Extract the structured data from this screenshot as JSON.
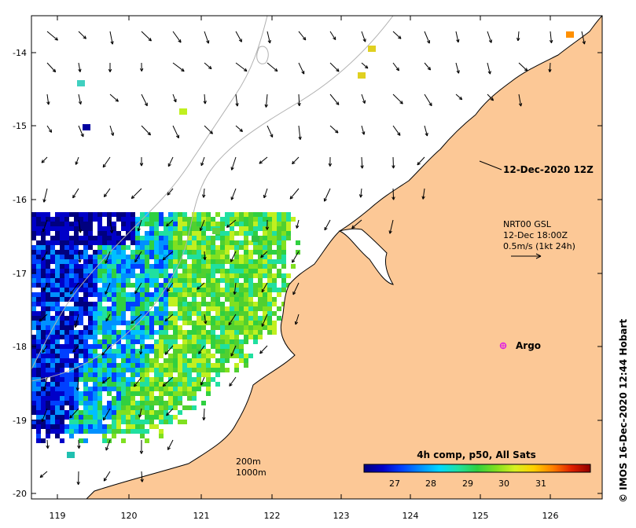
{
  "map": {
    "date_label": "12-Dec-2020 12Z",
    "current_info": [
      "NRT00 GSL",
      "12-Dec 18:00Z",
      "0.5m/s (1kt 24h)"
    ],
    "argo_label": "Argo",
    "depth_contours": [
      "200m",
      "1000m"
    ],
    "credit": "© IMOS 16-Dec-2020 12:44 Hobart",
    "colorbar": {
      "title": "4h comp, p50, All Sats",
      "ticks": [
        "27",
        "28",
        "29",
        "30",
        "31"
      ],
      "colors": [
        "#00007f",
        "#0000c8",
        "#0040ff",
        "#0090ff",
        "#00d8ff",
        "#20e0a0",
        "#30d040",
        "#80e020",
        "#d8f020",
        "#ffd000",
        "#ff8000",
        "#e02000",
        "#900000"
      ]
    },
    "axes": {
      "lon_ticks": [
        "119",
        "120",
        "121",
        "122",
        "123",
        "124",
        "125",
        "126"
      ],
      "lat_ticks": [
        "-14",
        "-15",
        "-16",
        "-17",
        "-18",
        "-19",
        "-20"
      ]
    },
    "colors": {
      "land": "#fcc896",
      "coast": "#000000",
      "contour": "#b0b0b0",
      "argo": "#e020e0"
    }
  }
}
